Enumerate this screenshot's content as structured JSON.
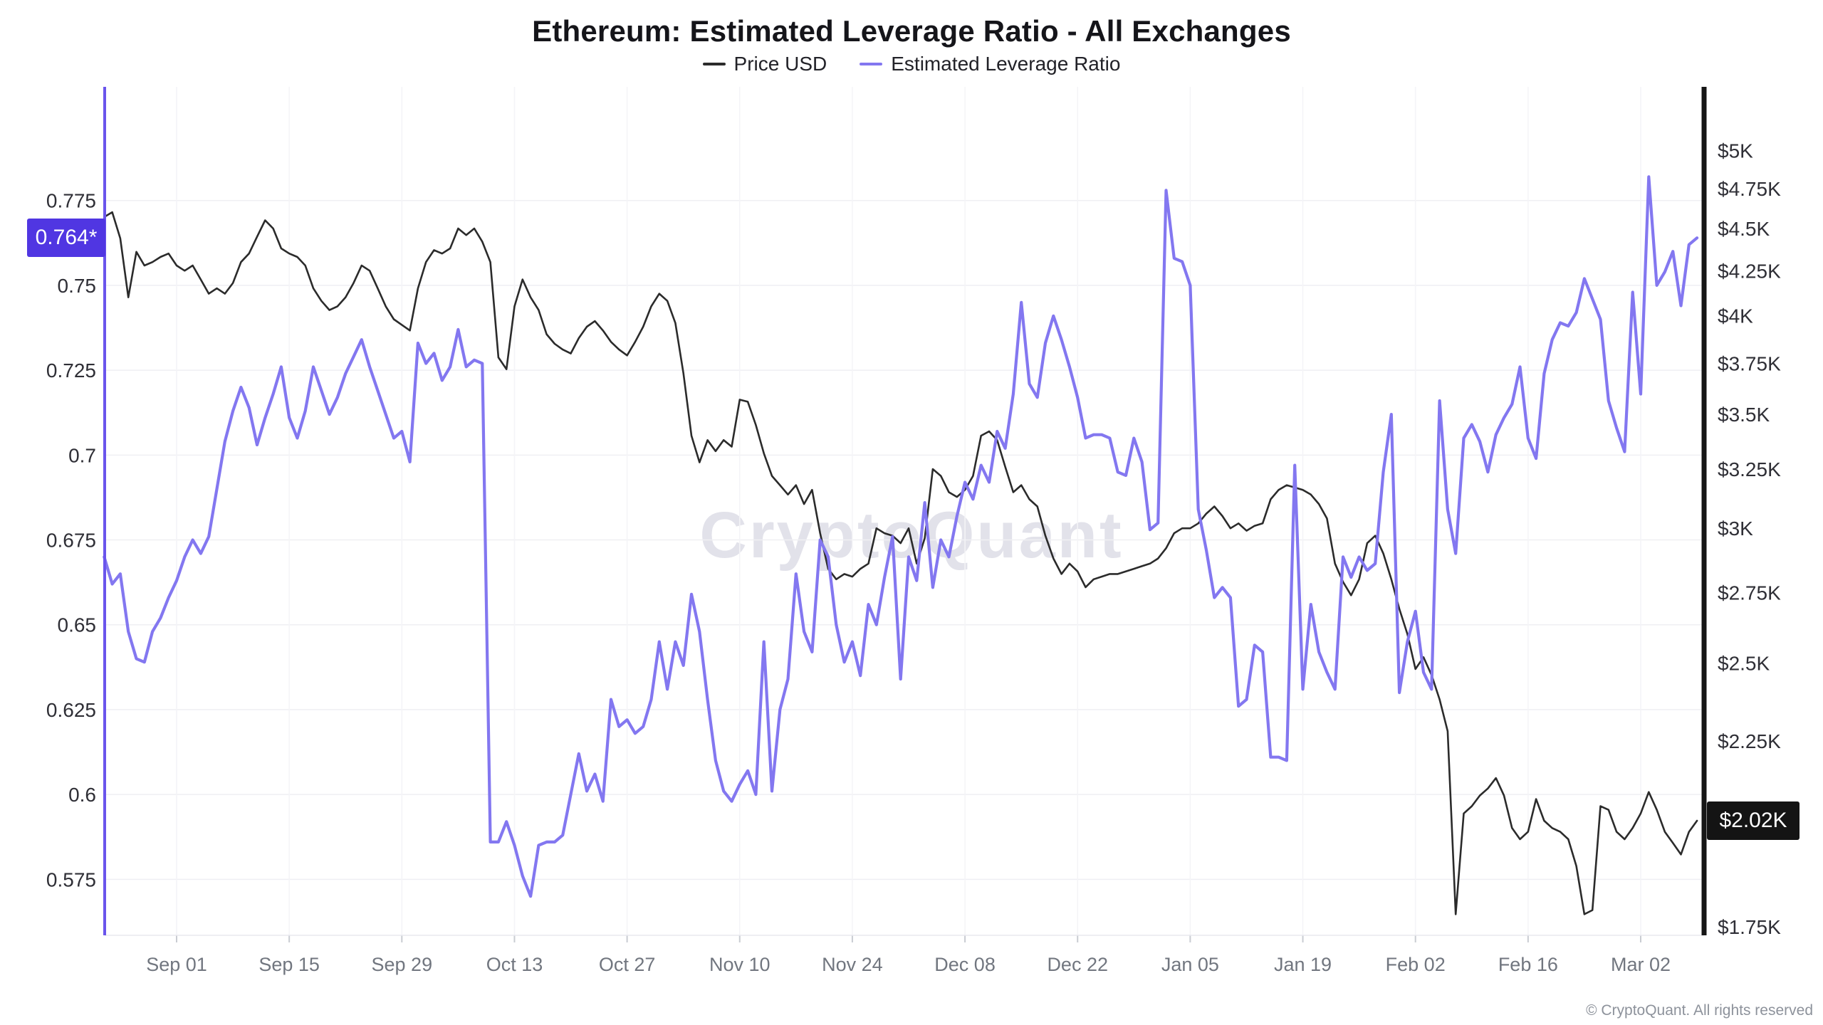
{
  "header": {
    "title": "Ethereum: Estimated Leverage Ratio - All Exchanges"
  },
  "legend": {
    "items": [
      {
        "label": "Price USD",
        "color": "#2b2b2b"
      },
      {
        "label": "Estimated Leverage Ratio",
        "color": "#8377f0"
      }
    ]
  },
  "watermark": "CryptoQuant",
  "footer": {
    "copyright": "© CryptoQuant. All rights reserved"
  },
  "badges": {
    "left_value": "0.764*",
    "left_bg": "#5036e2",
    "right_value": "$2.02K",
    "right_bg": "#141414"
  },
  "chart_data": {
    "type": "line",
    "title": "Ethereum: Estimated Leverage Ratio - All Exchanges",
    "grid": "horizontal-at-left-ticks",
    "legend_position": "top",
    "x_start_date": "Aug 23",
    "x_end_date": "Mar 09",
    "x_tick_labels": [
      "Sep 01",
      "Sep 15",
      "Sep 29",
      "Oct 13",
      "Oct 27",
      "Nov 10",
      "Nov 24",
      "Dec 08",
      "Dec 22",
      "Jan 05",
      "Jan 19",
      "Feb 02",
      "Feb 16",
      "Mar 02"
    ],
    "x_tick_day_index": [
      9,
      23,
      37,
      51,
      65,
      79,
      93,
      107,
      121,
      135,
      149,
      163,
      177,
      191
    ],
    "days_total": 199,
    "left_axis": {
      "name": "Estimated Leverage Ratio",
      "scale": "linear",
      "tick_labels": [
        "0.775",
        "0.75",
        "0.725",
        "0.7",
        "0.675",
        "0.65",
        "0.625",
        "0.6",
        "0.575"
      ],
      "tick_values": [
        0.775,
        0.75,
        0.725,
        0.7,
        0.675,
        0.65,
        0.625,
        0.6,
        0.575
      ],
      "range_top": 0.8085,
      "range_bottom": 0.5585,
      "latest_value": 0.764,
      "axis_line_color": "#6a55ec"
    },
    "right_axis": {
      "name": "Price USD",
      "scale": "log",
      "tick_labels": [
        "$5K",
        "$4.75K",
        "$4.5K",
        "$4.25K",
        "$4K",
        "$3.75K",
        "$3.5K",
        "$3.25K",
        "$3K",
        "$2.75K",
        "$2.5K",
        "$2.25K",
        "$1.75K"
      ],
      "tick_values": [
        5000,
        4750,
        4500,
        4250,
        4000,
        3750,
        3500,
        3250,
        3000,
        2750,
        2500,
        2250,
        1750
      ],
      "range_top": 5450,
      "range_bottom": 1730,
      "latest_value": 2020,
      "axis_line_color": "#161616"
    },
    "series": [
      {
        "name": "Price USD",
        "axis": "right",
        "color": "#2b2b2b",
        "width": 2.6,
        "values": [
          4570,
          4600,
          4440,
          4100,
          4360,
          4280,
          4300,
          4330,
          4350,
          4280,
          4250,
          4280,
          4200,
          4120,
          4150,
          4120,
          4180,
          4300,
          4350,
          4450,
          4550,
          4500,
          4380,
          4350,
          4330,
          4280,
          4150,
          4080,
          4030,
          4050,
          4100,
          4180,
          4280,
          4250,
          4150,
          4050,
          3980,
          3950,
          3920,
          4150,
          4300,
          4370,
          4350,
          4380,
          4500,
          4460,
          4500,
          4420,
          4300,
          3780,
          3720,
          4050,
          4200,
          4100,
          4030,
          3900,
          3850,
          3820,
          3800,
          3880,
          3940,
          3970,
          3920,
          3860,
          3820,
          3790,
          3860,
          3940,
          4050,
          4120,
          4080,
          3960,
          3700,
          3400,
          3280,
          3380,
          3330,
          3380,
          3350,
          3570,
          3560,
          3450,
          3320,
          3220,
          3180,
          3140,
          3180,
          3100,
          3160,
          2980,
          2840,
          2800,
          2820,
          2810,
          2840,
          2860,
          3000,
          2980,
          2970,
          2940,
          3000,
          2860,
          2960,
          3250,
          3220,
          3150,
          3130,
          3160,
          3220,
          3400,
          3420,
          3380,
          3260,
          3150,
          3180,
          3120,
          3090,
          2970,
          2880,
          2820,
          2860,
          2830,
          2770,
          2800,
          2810,
          2820,
          2820,
          2830,
          2840,
          2850,
          2860,
          2880,
          2920,
          2980,
          3000,
          3000,
          3020,
          3060,
          3090,
          3050,
          3000,
          3020,
          2990,
          3010,
          3020,
          3120,
          3160,
          3180,
          3170,
          3160,
          3140,
          3100,
          3040,
          2860,
          2790,
          2740,
          2800,
          2940,
          2970,
          2900,
          2800,
          2690,
          2600,
          2480,
          2520,
          2460,
          2380,
          2280,
          1780,
          2040,
          2060,
          2090,
          2110,
          2140,
          2090,
          2000,
          1970,
          1990,
          2080,
          2020,
          2000,
          1990,
          1970,
          1900,
          1780,
          1790,
          2060,
          2050,
          1990,
          1970,
          2000,
          2040,
          2100,
          2050,
          1990,
          1960,
          1930,
          1990,
          2020
        ]
      },
      {
        "name": "Estimated Leverage Ratio",
        "axis": "left",
        "color": "#8377f0",
        "width": 4.2,
        "values": [
          0.67,
          0.662,
          0.665,
          0.648,
          0.64,
          0.639,
          0.648,
          0.652,
          0.658,
          0.663,
          0.67,
          0.675,
          0.671,
          0.676,
          0.69,
          0.704,
          0.713,
          0.72,
          0.714,
          0.703,
          0.711,
          0.718,
          0.726,
          0.711,
          0.705,
          0.713,
          0.726,
          0.719,
          0.712,
          0.717,
          0.724,
          0.729,
          0.734,
          0.726,
          0.719,
          0.712,
          0.705,
          0.707,
          0.698,
          0.733,
          0.727,
          0.73,
          0.722,
          0.726,
          0.737,
          0.726,
          0.728,
          0.727,
          0.586,
          0.586,
          0.592,
          0.585,
          0.576,
          0.57,
          0.585,
          0.586,
          0.586,
          0.588,
          0.6,
          0.612,
          0.601,
          0.606,
          0.598,
          0.628,
          0.62,
          0.622,
          0.618,
          0.62,
          0.628,
          0.645,
          0.631,
          0.645,
          0.638,
          0.659,
          0.648,
          0.628,
          0.61,
          0.601,
          0.598,
          0.603,
          0.607,
          0.6,
          0.645,
          0.601,
          0.625,
          0.634,
          0.665,
          0.648,
          0.642,
          0.675,
          0.67,
          0.65,
          0.639,
          0.645,
          0.635,
          0.656,
          0.65,
          0.664,
          0.676,
          0.634,
          0.67,
          0.663,
          0.686,
          0.661,
          0.675,
          0.67,
          0.682,
          0.692,
          0.687,
          0.697,
          0.692,
          0.707,
          0.702,
          0.718,
          0.745,
          0.721,
          0.717,
          0.733,
          0.741,
          0.734,
          0.726,
          0.717,
          0.705,
          0.706,
          0.706,
          0.705,
          0.695,
          0.694,
          0.705,
          0.698,
          0.678,
          0.68,
          0.778,
          0.758,
          0.757,
          0.75,
          0.684,
          0.672,
          0.658,
          0.661,
          0.658,
          0.626,
          0.628,
          0.644,
          0.642,
          0.611,
          0.611,
          0.61,
          0.697,
          0.631,
          0.656,
          0.642,
          0.636,
          0.631,
          0.67,
          0.664,
          0.67,
          0.666,
          0.668,
          0.695,
          0.712,
          0.63,
          0.645,
          0.654,
          0.636,
          0.631,
          0.716,
          0.684,
          0.671,
          0.705,
          0.709,
          0.704,
          0.695,
          0.706,
          0.711,
          0.715,
          0.726,
          0.705,
          0.699,
          0.724,
          0.734,
          0.739,
          0.738,
          0.742,
          0.752,
          0.746,
          0.74,
          0.716,
          0.708,
          0.701,
          0.748,
          0.718,
          0.782,
          0.75,
          0.754,
          0.76,
          0.744,
          0.762,
          0.764
        ]
      }
    ]
  }
}
